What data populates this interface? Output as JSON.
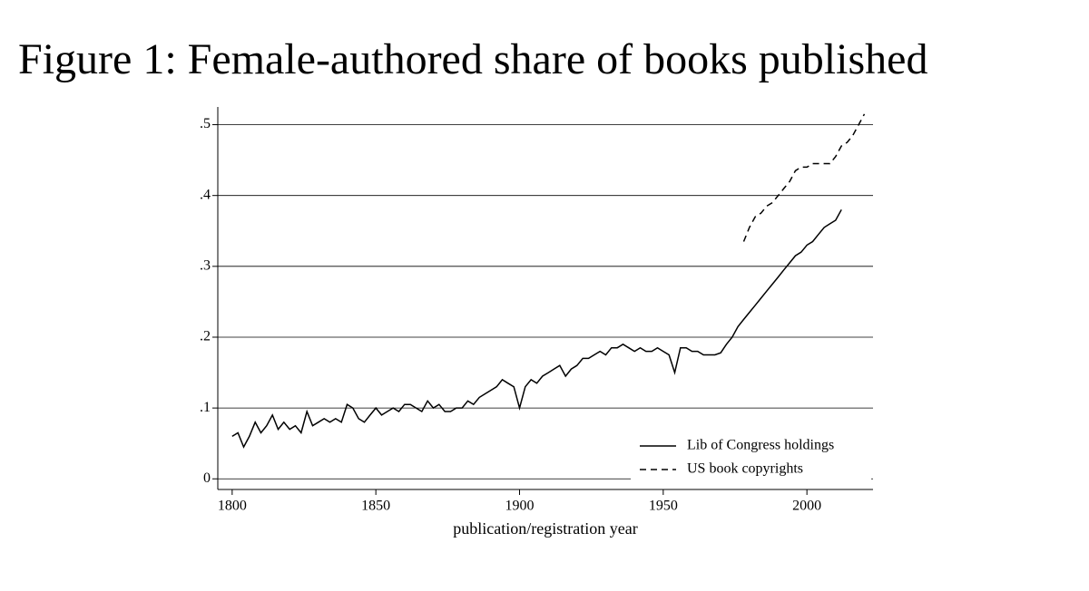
{
  "chart_data": {
    "type": "line",
    "title": "Figure 1: Female-authored share of books published",
    "xlabel": "publication/registration year",
    "x": [
      1800,
      1802,
      1804,
      1806,
      1808,
      1810,
      1812,
      1814,
      1816,
      1818,
      1820,
      1822,
      1824,
      1826,
      1828,
      1830,
      1832,
      1834,
      1836,
      1838,
      1840,
      1842,
      1844,
      1846,
      1848,
      1850,
      1852,
      1854,
      1856,
      1858,
      1860,
      1862,
      1864,
      1866,
      1868,
      1870,
      1872,
      1874,
      1876,
      1878,
      1880,
      1882,
      1884,
      1886,
      1888,
      1890,
      1892,
      1894,
      1896,
      1898,
      1900,
      1902,
      1904,
      1906,
      1908,
      1910,
      1912,
      1914,
      1916,
      1918,
      1920,
      1922,
      1924,
      1926,
      1928,
      1930,
      1932,
      1934,
      1936,
      1938,
      1940,
      1942,
      1944,
      1946,
      1948,
      1950,
      1952,
      1954,
      1956,
      1958,
      1960,
      1962,
      1964,
      1966,
      1968,
      1970,
      1972,
      1974,
      1976,
      1978,
      1980,
      1982,
      1984,
      1986,
      1988,
      1990,
      1992,
      1994,
      1996,
      1998,
      2000,
      2002,
      2004,
      2006,
      2008,
      2010,
      2012,
      2014,
      2016,
      2018,
      2020
    ],
    "series": [
      {
        "name": "Lib of Congress holdings",
        "color": "#000000",
        "linestyle": "solid",
        "values": [
          0.06,
          0.065,
          0.045,
          0.06,
          0.08,
          0.065,
          0.075,
          0.09,
          0.07,
          0.08,
          0.07,
          0.075,
          0.065,
          0.095,
          0.075,
          0.08,
          0.085,
          0.08,
          0.085,
          0.08,
          0.105,
          0.1,
          0.085,
          0.08,
          0.09,
          0.1,
          0.09,
          0.095,
          0.1,
          0.095,
          0.105,
          0.105,
          0.1,
          0.095,
          0.11,
          0.1,
          0.105,
          0.095,
          0.095,
          0.1,
          0.1,
          0.11,
          0.105,
          0.115,
          0.12,
          0.125,
          0.13,
          0.14,
          0.135,
          0.13,
          0.1,
          0.13,
          0.14,
          0.135,
          0.145,
          0.15,
          0.155,
          0.16,
          0.145,
          0.155,
          0.16,
          0.17,
          0.17,
          0.175,
          0.18,
          0.175,
          0.185,
          0.185,
          0.19,
          0.185,
          0.18,
          0.185,
          0.18,
          0.18,
          0.185,
          0.18,
          0.175,
          0.15,
          0.185,
          0.185,
          0.18,
          0.18,
          0.175,
          0.175,
          0.175,
          0.178,
          0.19,
          0.2,
          0.215,
          0.225,
          0.235,
          0.245,
          0.255,
          0.265,
          0.275,
          0.285,
          0.295,
          0.305,
          0.315,
          0.32,
          0.33,
          0.335,
          0.345,
          0.355,
          0.36,
          0.365,
          0.38,
          null,
          null,
          null,
          null
        ]
      },
      {
        "name": "US book copyrights",
        "color": "#000000",
        "linestyle": "dashed",
        "values": [
          null,
          null,
          null,
          null,
          null,
          null,
          null,
          null,
          null,
          null,
          null,
          null,
          null,
          null,
          null,
          null,
          null,
          null,
          null,
          null,
          null,
          null,
          null,
          null,
          null,
          null,
          null,
          null,
          null,
          null,
          null,
          null,
          null,
          null,
          null,
          null,
          null,
          null,
          null,
          null,
          null,
          null,
          null,
          null,
          null,
          null,
          null,
          null,
          null,
          null,
          null,
          null,
          null,
          null,
          null,
          null,
          null,
          null,
          null,
          null,
          null,
          null,
          null,
          null,
          null,
          null,
          null,
          null,
          null,
          null,
          null,
          null,
          null,
          null,
          null,
          null,
          null,
          null,
          null,
          null,
          null,
          null,
          null,
          null,
          null,
          null,
          null,
          null,
          null,
          0.335,
          0.355,
          0.37,
          0.375,
          0.385,
          0.39,
          0.4,
          0.41,
          0.42,
          0.435,
          0.44,
          0.44,
          0.445,
          0.445,
          0.445,
          0.445,
          0.455,
          0.47,
          0.475,
          0.485,
          0.5,
          0.515
        ]
      }
    ],
    "xlim": [
      1795,
      2023
    ],
    "xticks": [
      1800,
      1850,
      1900,
      1950,
      2000
    ],
    "ylim": [
      -0.015,
      0.525
    ],
    "yticks": [
      0,
      {
        "value": 0.1,
        "label": ".1"
      },
      {
        "value": 0.2,
        "label": ".2"
      },
      {
        "value": 0.3,
        "label": ".3"
      },
      {
        "value": 0.4,
        "label": ".4"
      },
      {
        "value": 0.5,
        "label": ".5"
      }
    ],
    "grid": true,
    "legend": "lower right"
  }
}
